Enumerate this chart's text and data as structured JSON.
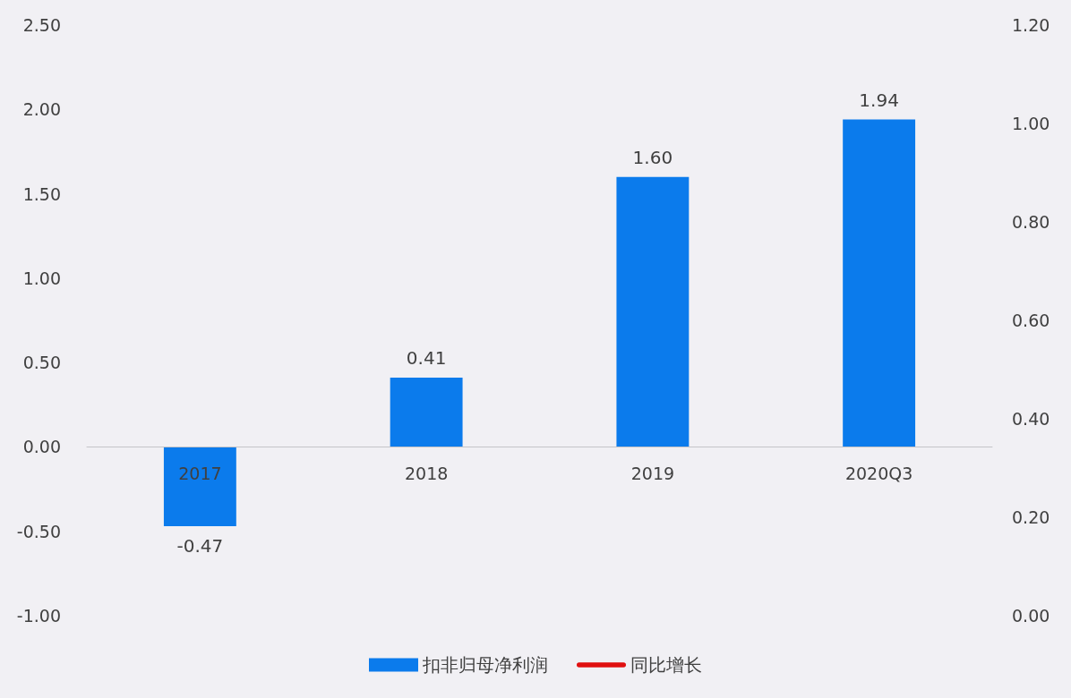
{
  "chart_data": {
    "type": "bar",
    "categories": [
      "2017",
      "2018",
      "2019",
      "2020Q3"
    ],
    "series": [
      {
        "name": "扣非归母净利润",
        "color": "#0b7bec",
        "values": [
          -0.47,
          0.41,
          1.6,
          1.94
        ],
        "value_labels": [
          "-0.47",
          "0.41",
          "1.60",
          "1.94"
        ]
      },
      {
        "name": "同比增长",
        "type": "line",
        "axis": "y2",
        "color": "#e01010",
        "values": [
          null,
          null,
          null,
          null
        ]
      }
    ],
    "ylim": [
      -1,
      2.5
    ],
    "yticks": [
      {
        "value": -1,
        "label": "-1.00"
      },
      {
        "value": -0.5,
        "label": "-0.50"
      },
      {
        "value": 0,
        "label": "0.00"
      },
      {
        "value": 0.5,
        "label": "0.50"
      },
      {
        "value": 1,
        "label": "1.00"
      },
      {
        "value": 1.5,
        "label": "1.50"
      },
      {
        "value": 2,
        "label": "2.00"
      },
      {
        "value": 2.5,
        "label": "2.50"
      }
    ],
    "y2lim": [
      0,
      1.2
    ],
    "y2ticks": [
      {
        "value": 0,
        "label": "0.00"
      },
      {
        "value": 0.2,
        "label": "0.20"
      },
      {
        "value": 0.4,
        "label": "0.40"
      },
      {
        "value": 0.6,
        "label": "0.60"
      },
      {
        "value": 0.8,
        "label": "0.80"
      },
      {
        "value": 1,
        "label": "1.00"
      },
      {
        "value": 1.2,
        "label": "1.20"
      }
    ],
    "grid": false,
    "legend": "bottom",
    "marker": "none"
  }
}
